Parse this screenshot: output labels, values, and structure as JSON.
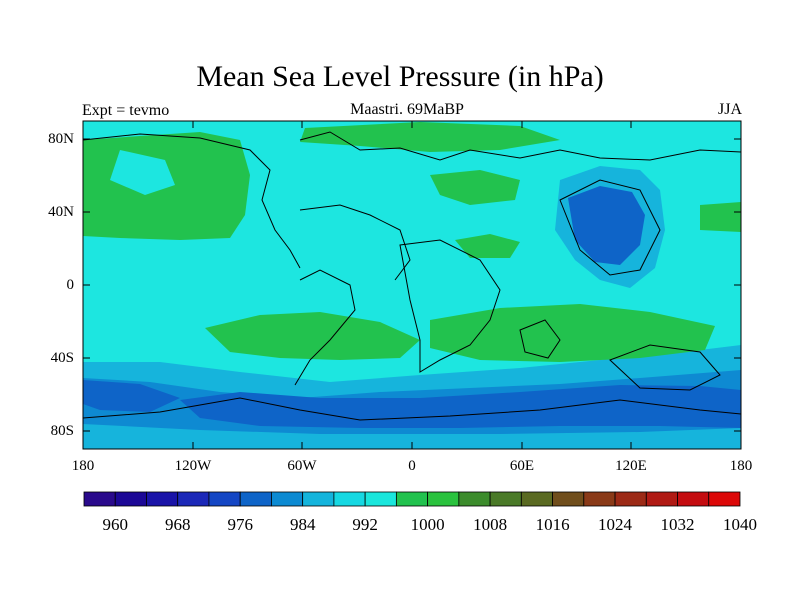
{
  "title": "Mean Sea Level Pressure (in hPa)",
  "left_label": "Expt = tevmo",
  "center_label": "Maastri.  69MaBP",
  "right_label": "JJA",
  "axes": {
    "lat_ticks": [
      "80N",
      "40N",
      "0",
      "40S",
      "80S"
    ],
    "lon_ticks": [
      "180",
      "120W",
      "60W",
      "0",
      "60E",
      "120E",
      "180"
    ]
  },
  "colorbar": {
    "colors": [
      "#2a0a8c",
      "#1c0896",
      "#1a14a8",
      "#1b28b8",
      "#1446c4",
      "#0e64c8",
      "#0c8ad2",
      "#14b4dc",
      "#16d8e2",
      "#1ae6dc",
      "#22c24e",
      "#2ac23e",
      "#3c8c2c",
      "#4a7a28",
      "#5a6a22",
      "#704e1c",
      "#8a3a18",
      "#9c2a16",
      "#b01a14",
      "#c40c10",
      "#dc0808"
    ],
    "labels": [
      "960",
      "968",
      "976",
      "984",
      "992",
      "1000",
      "1008",
      "1016",
      "1024",
      "1032",
      "1040"
    ]
  },
  "colors": {
    "base": "#1de6e0",
    "mid": "#16b4dc",
    "low": "#0e6ec8",
    "lowest": "#1446c4",
    "high": "#22c24e"
  }
}
